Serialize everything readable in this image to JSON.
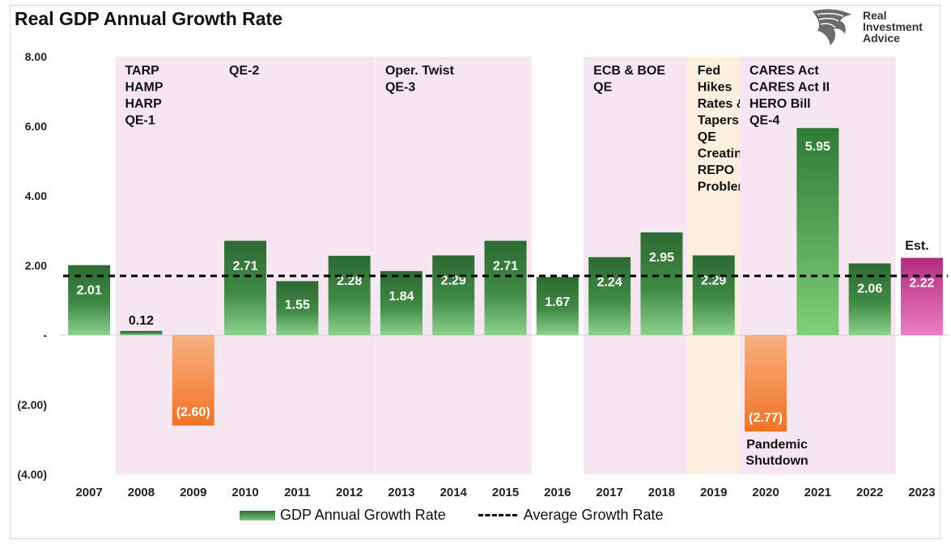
{
  "title": "Real GDP Annual Growth Rate",
  "logo": {
    "line1": "Real",
    "line2": "Investment",
    "line3": "Advice",
    "icon": "eagle-head-icon"
  },
  "legend": {
    "series_label": "GDP Annual Growth Rate",
    "average_label": "Average Growth Rate"
  },
  "chart_data": {
    "type": "bar",
    "title": "Real GDP Annual Growth Rate",
    "categories": [
      "2007",
      "2008",
      "2009",
      "2010",
      "2011",
      "2012",
      "2013",
      "2014",
      "2015",
      "2016",
      "2017",
      "2018",
      "2019",
      "2020",
      "2021",
      "2022",
      "2023"
    ],
    "values": [
      2.01,
      0.12,
      -2.6,
      2.71,
      1.55,
      2.28,
      1.84,
      2.29,
      2.71,
      1.67,
      2.24,
      2.95,
      2.29,
      -2.77,
      5.95,
      2.06,
      2.22
    ],
    "value_labels": [
      "2.01",
      "0.12",
      "(2.60)",
      "2.71",
      "1.55",
      "2.28",
      "1.84",
      "2.29",
      "2.71",
      "1.67",
      "2.24",
      "2.95",
      "2.29",
      "(2.77)",
      "5.95",
      "2.06",
      "2.22"
    ],
    "average": 1.7,
    "ylim": [
      -4,
      8
    ],
    "yticks": [
      8,
      6,
      4,
      2,
      0,
      -2,
      -4
    ],
    "ytick_labels": [
      "8.00",
      "6.00",
      "4.00",
      "2.00",
      "-",
      "(2.00)",
      "(4.00)"
    ],
    "grid": false,
    "legend_position": "bottom",
    "colors": {
      "positive": "#3a8a41",
      "negative": "#f07a2a",
      "estimate": "#c0318a",
      "band_pink": "#f6e6f2",
      "band_orange": "#fdefdf"
    },
    "series": [
      {
        "name": "GDP Annual Growth Rate",
        "type": "bar"
      },
      {
        "name": "Average Growth Rate",
        "type": "dashed-line"
      }
    ],
    "bands": [
      {
        "from": "2008",
        "to": "2009",
        "color": "pink",
        "lines": [
          "TARP",
          "HAMP",
          "HARP",
          "QE-1"
        ]
      },
      {
        "from": "2010",
        "to": "2012",
        "color": "pink",
        "lines": [
          "QE-2"
        ]
      },
      {
        "from": "2013",
        "to": "2015",
        "color": "pink",
        "lines": [
          "Oper. Twist",
          "QE-3"
        ]
      },
      {
        "from": "2017",
        "to": "2018",
        "color": "pink",
        "lines": [
          "ECB & BOE",
          "QE"
        ]
      },
      {
        "from": "2019",
        "to": "2019",
        "color": "orange",
        "lines": [
          "Fed",
          "Hikes",
          "Rates &",
          "Tapers",
          "QE",
          "Creating",
          "REPO",
          "Problem"
        ]
      },
      {
        "from": "2020",
        "to": "2022",
        "color": "pink",
        "lines": [
          "CARES Act",
          "CARES Act II",
          "HERO Bill",
          "QE-4"
        ]
      }
    ],
    "annotations": [
      {
        "at": "2020",
        "lines": [
          "Pandemic",
          "Shutdown"
        ]
      },
      {
        "at": "2023",
        "lines": [
          "Est."
        ]
      }
    ]
  }
}
